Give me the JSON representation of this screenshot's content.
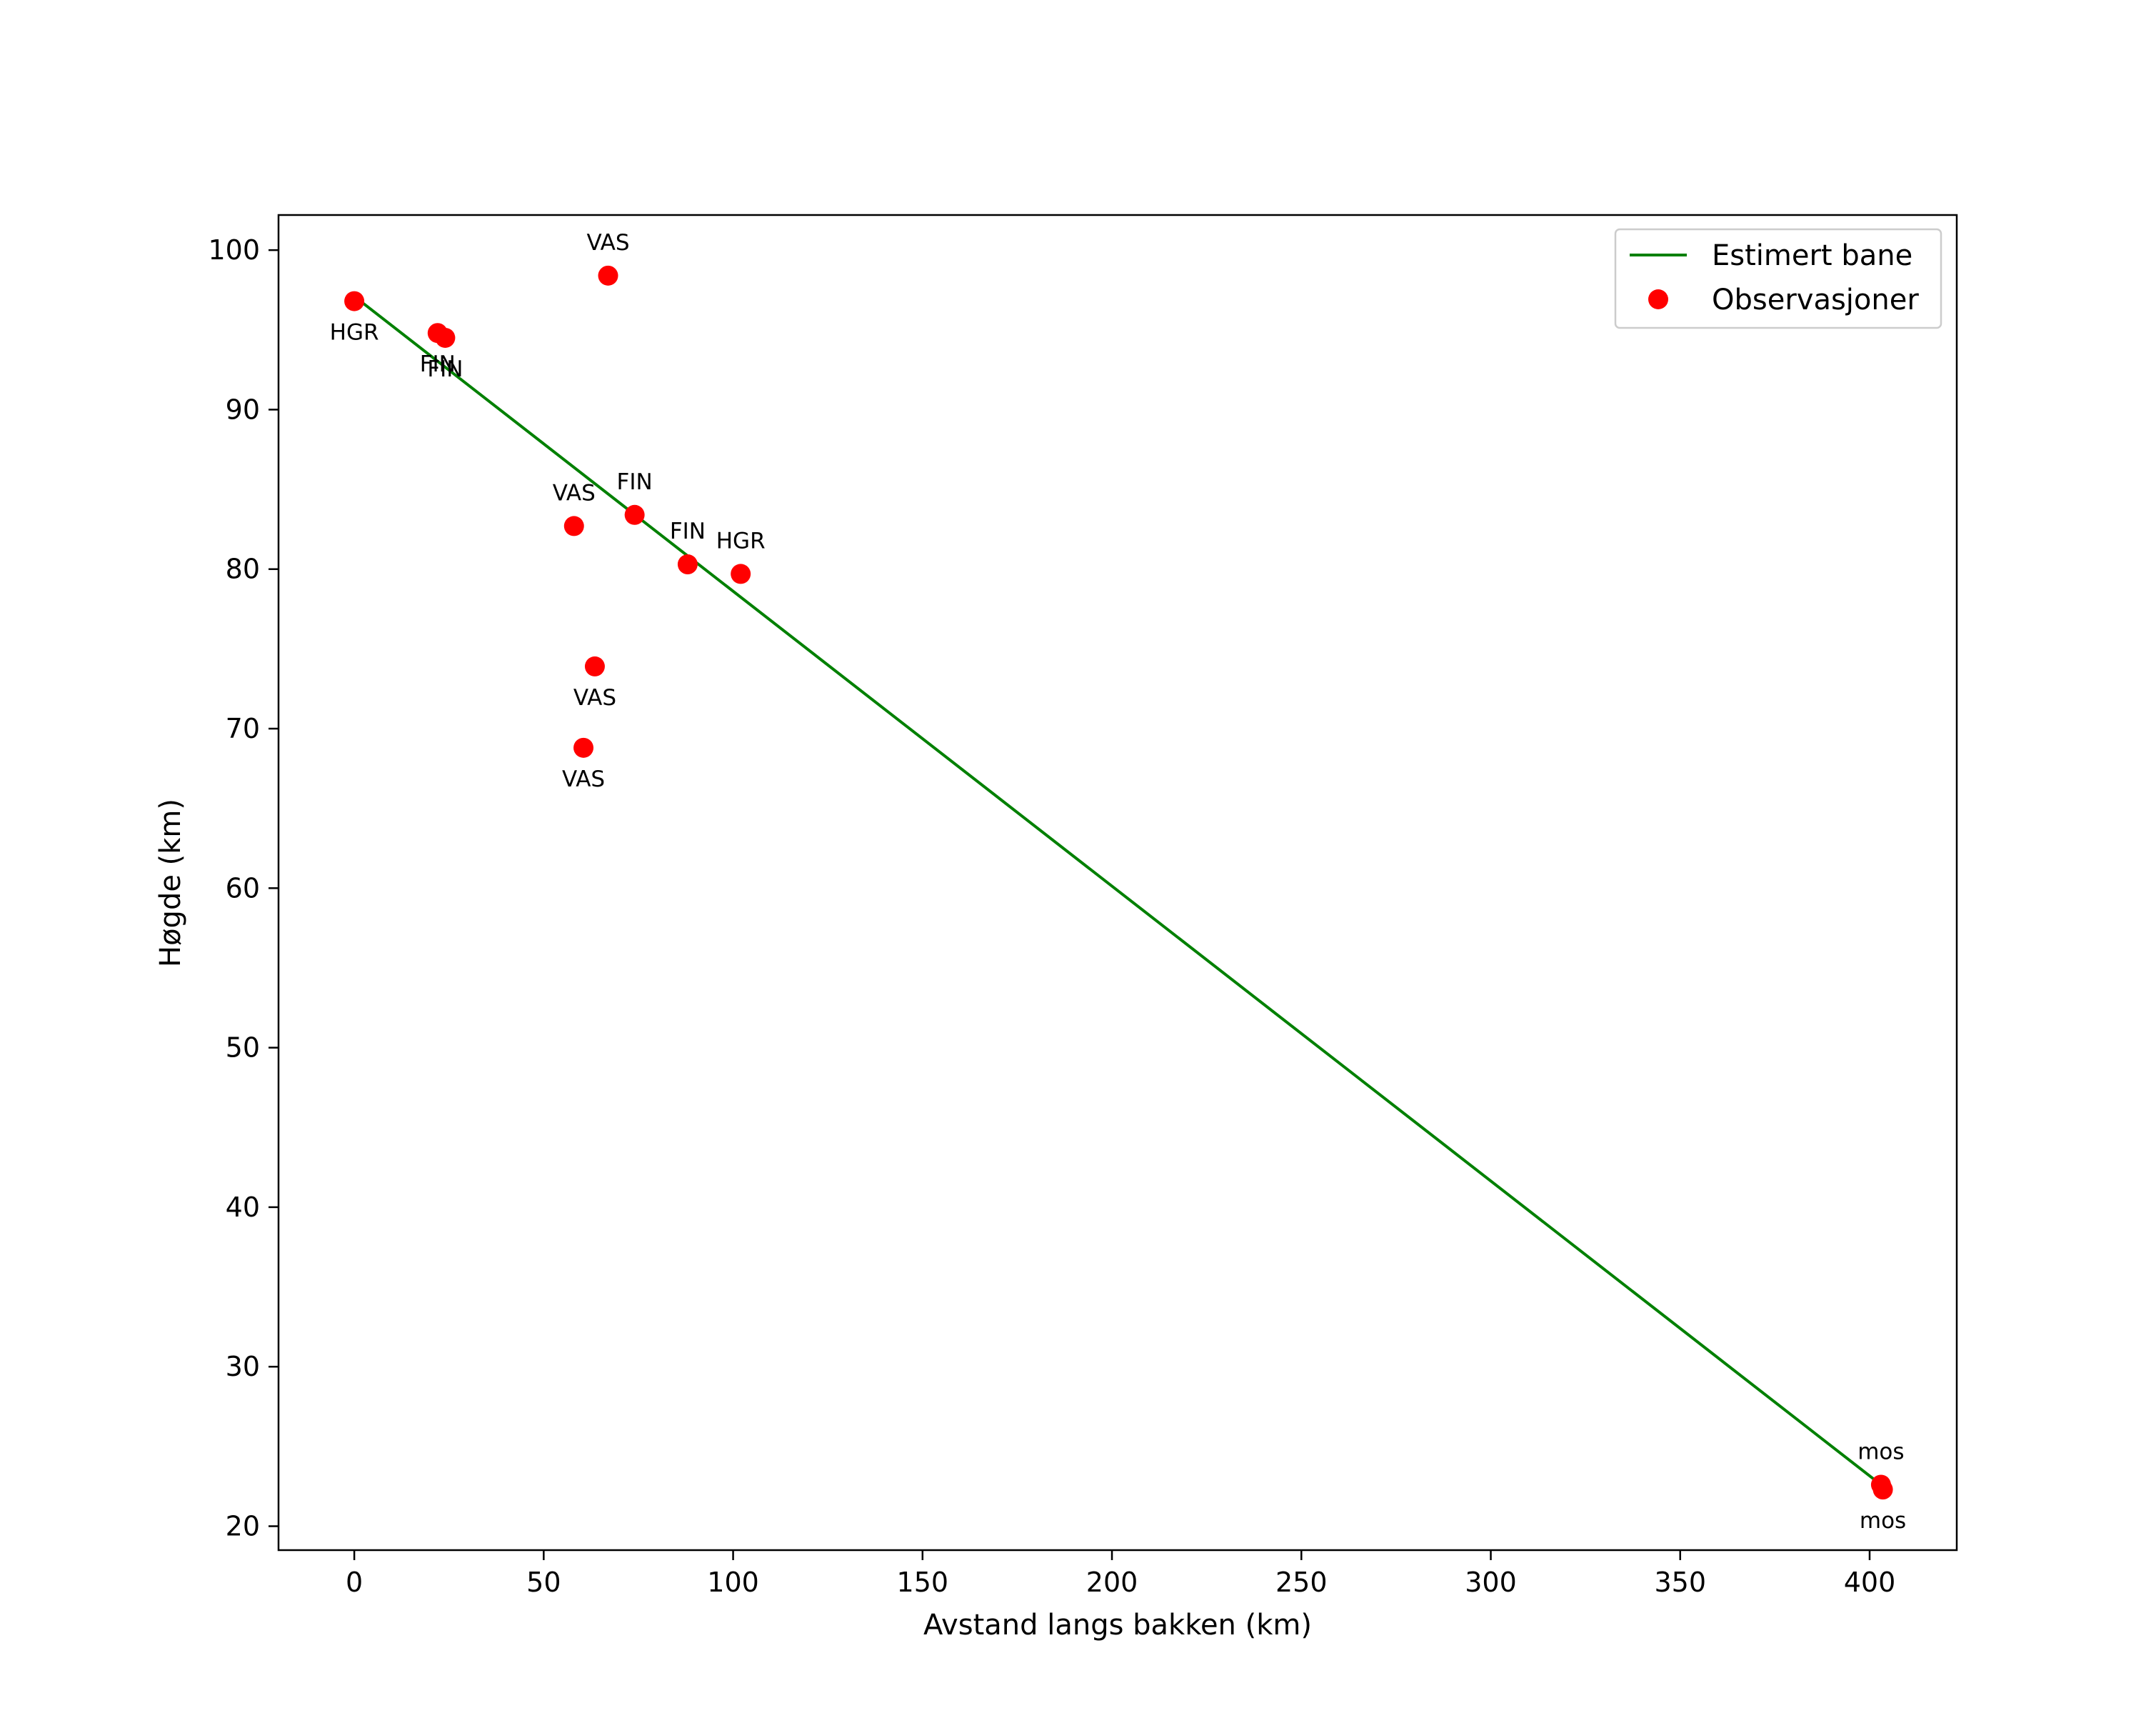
{
  "chart_data": {
    "type": "scatter",
    "title": "",
    "xlabel": "Avstand langs bakken (km)",
    "ylabel": "Høgde (km)",
    "xlim": [
      -20,
      423
    ],
    "ylim": [
      18.5,
      102.2
    ],
    "xticks": [
      0,
      50,
      100,
      150,
      200,
      250,
      300,
      350,
      400
    ],
    "yticks": [
      20,
      30,
      40,
      50,
      60,
      70,
      80,
      90,
      100
    ],
    "grid": false,
    "legend_position": "top-right",
    "colors": {
      "line": "#008000",
      "points": "#ff0000",
      "frame": "#000000"
    },
    "series": [
      {
        "name": "Estimert bane",
        "kind": "line",
        "x": [
          0,
          403
        ],
        "y": [
          97.1,
          22.6
        ]
      },
      {
        "name": "Observasjoner",
        "kind": "scatter",
        "points": [
          {
            "x": 0,
            "y": 96.8,
            "label": "HGR",
            "label_pos": "below"
          },
          {
            "x": 22,
            "y": 94.8,
            "label": "FIN",
            "label_pos": "below"
          },
          {
            "x": 24,
            "y": 94.5,
            "label": "FIN",
            "label_pos": "below"
          },
          {
            "x": 67,
            "y": 98.4,
            "label": "VAS",
            "label_pos": "above"
          },
          {
            "x": 58,
            "y": 82.7,
            "label": "VAS",
            "label_pos": "above"
          },
          {
            "x": 74,
            "y": 83.4,
            "label": "FIN",
            "label_pos": "above"
          },
          {
            "x": 88,
            "y": 80.3,
            "label": "FIN",
            "label_pos": "above"
          },
          {
            "x": 102,
            "y": 79.7,
            "label": "HGR",
            "label_pos": "above"
          },
          {
            "x": 63.5,
            "y": 73.9,
            "label": "VAS",
            "label_pos": "below"
          },
          {
            "x": 60.5,
            "y": 68.8,
            "label": "VAS",
            "label_pos": "below"
          },
          {
            "x": 403,
            "y": 22.6,
            "label": "mos",
            "label_pos": "above"
          },
          {
            "x": 403.5,
            "y": 22.3,
            "label": "mos",
            "label_pos": "below"
          }
        ]
      }
    ]
  }
}
